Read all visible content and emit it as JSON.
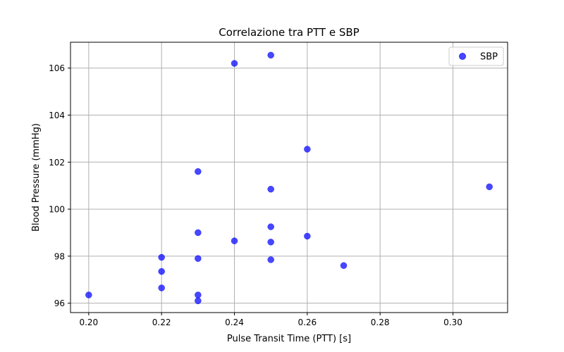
{
  "chart_data": {
    "type": "scatter",
    "title": "Correlazione tra PTT e SBP",
    "xlabel": "Pulse Transit Time (PTT) [s]",
    "ylabel": "Blood Pressure (mmHg)",
    "xlim": [
      0.195,
      0.315
    ],
    "ylim": [
      95.6,
      107.1
    ],
    "xticks": [
      0.2,
      0.22,
      0.24,
      0.26,
      0.28,
      0.3
    ],
    "yticks": [
      96,
      98,
      100,
      102,
      104,
      106
    ],
    "xtick_labels": [
      "0.20",
      "0.22",
      "0.24",
      "0.26",
      "0.28",
      "0.30"
    ],
    "ytick_labels": [
      "96",
      "98",
      "100",
      "102",
      "104",
      "106"
    ],
    "grid": true,
    "legend_position": "top-right",
    "series": [
      {
        "name": "SBP",
        "color": "#0000ff",
        "marker": "circle",
        "points": [
          {
            "x": 0.2,
            "y": 96.35
          },
          {
            "x": 0.22,
            "y": 97.95
          },
          {
            "x": 0.22,
            "y": 97.35
          },
          {
            "x": 0.22,
            "y": 96.65
          },
          {
            "x": 0.23,
            "y": 101.6
          },
          {
            "x": 0.23,
            "y": 99.0
          },
          {
            "x": 0.23,
            "y": 97.9
          },
          {
            "x": 0.23,
            "y": 96.35
          },
          {
            "x": 0.23,
            "y": 96.1
          },
          {
            "x": 0.24,
            "y": 106.2
          },
          {
            "x": 0.24,
            "y": 98.65
          },
          {
            "x": 0.25,
            "y": 106.55
          },
          {
            "x": 0.25,
            "y": 100.85
          },
          {
            "x": 0.25,
            "y": 99.25
          },
          {
            "x": 0.25,
            "y": 98.6
          },
          {
            "x": 0.25,
            "y": 97.85
          },
          {
            "x": 0.26,
            "y": 102.55
          },
          {
            "x": 0.26,
            "y": 98.85
          },
          {
            "x": 0.27,
            "y": 97.6
          },
          {
            "x": 0.31,
            "y": 100.95
          }
        ]
      }
    ]
  }
}
